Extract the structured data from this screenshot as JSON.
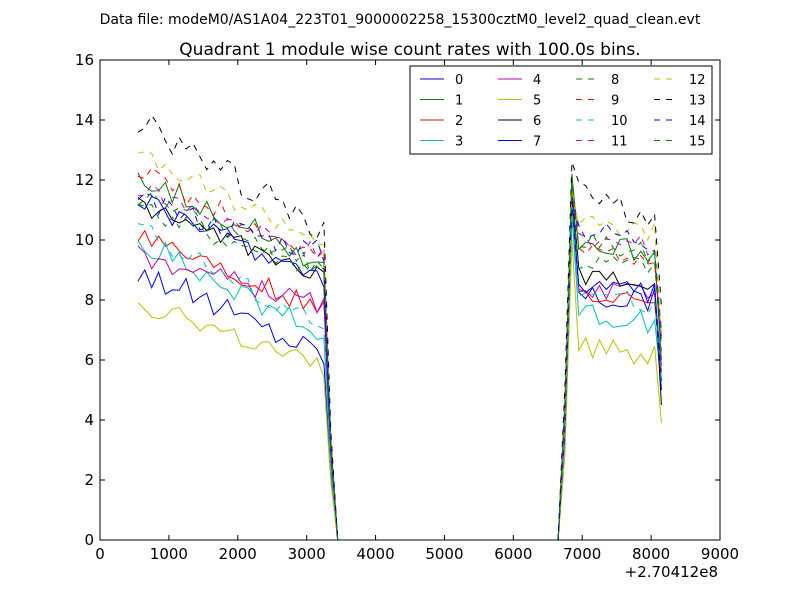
{
  "figure": {
    "suptitle": "Data file: modeM0/AS1A04_223T01_9000002258_15300cztM0_level2_quad_clean.evt",
    "title": "Quadrant 1 module wise count rates with 100.0s bins.",
    "x_offset_label": "+2.70412e8"
  },
  "chart_data": {
    "type": "line",
    "title": "Quadrant 1 module wise count rates with 100.0s bins.",
    "xlabel": "",
    "ylabel": "",
    "xlim": [
      0,
      9000
    ],
    "ylim": [
      0,
      16
    ],
    "x_ticks": [
      0,
      1000,
      2000,
      3000,
      4000,
      5000,
      6000,
      7000,
      8000,
      9000
    ],
    "y_ticks": [
      0,
      2,
      4,
      6,
      8,
      10,
      12,
      14,
      16
    ],
    "grid": false,
    "legend_position": "top-right",
    "x_gap": [
      3450,
      6650
    ],
    "series": [
      {
        "name": "0",
        "color": "#0000ff",
        "style": "solid",
        "base": 9.0,
        "amp": 0.45,
        "end": 6.2,
        "seg2": [
          11.0,
          8.2,
          8.0,
          5.0
        ]
      },
      {
        "name": "1",
        "color": "#008000",
        "style": "solid",
        "base": 12.2,
        "amp": 0.4,
        "end": 9.2,
        "seg2": [
          12.2,
          10.0,
          9.6,
          6.0
        ]
      },
      {
        "name": "2",
        "color": "#ff0000",
        "style": "solid",
        "base": 10.3,
        "amp": 0.35,
        "end": 7.6,
        "seg2": [
          11.0,
          8.2,
          8.2,
          5.6
        ]
      },
      {
        "name": "3",
        "color": "#00bfbf",
        "style": "solid",
        "base": 10.0,
        "amp": 0.4,
        "end": 6.8,
        "seg2": [
          10.8,
          7.7,
          7.2,
          5.2
        ]
      },
      {
        "name": "4",
        "color": "#bf00bf",
        "style": "solid",
        "base": 9.5,
        "amp": 0.35,
        "end": 7.8,
        "seg2": [
          11.3,
          8.0,
          8.4,
          5.8
        ]
      },
      {
        "name": "5",
        "color": "#bfbf00",
        "style": "solid",
        "base": 8.0,
        "amp": 0.4,
        "end": 5.6,
        "seg2": [
          10.0,
          6.4,
          6.2,
          3.9
        ]
      },
      {
        "name": "6",
        "color": "#000000",
        "style": "solid",
        "base": 11.2,
        "amp": 0.3,
        "end": 8.8,
        "seg2": [
          11.6,
          8.8,
          8.6,
          4.5
        ]
      },
      {
        "name": "7",
        "color": "#0000ff",
        "style": "solid",
        "base": 11.3,
        "amp": 0.35,
        "end": 8.7,
        "seg2": [
          11.3,
          8.5,
          8.2,
          5.3
        ]
      },
      {
        "name": "8",
        "color": "#008000",
        "style": "dashed",
        "base": 11.0,
        "amp": 0.35,
        "end": 9.0,
        "seg2": [
          11.5,
          9.3,
          9.2,
          6.3
        ]
      },
      {
        "name": "9",
        "color": "#ff0000",
        "style": "dashed",
        "base": 12.3,
        "amp": 0.35,
        "end": 9.3,
        "seg2": [
          11.6,
          9.6,
          9.5,
          6.8
        ]
      },
      {
        "name": "10",
        "color": "#00bfbf",
        "style": "dashed",
        "base": 10.4,
        "amp": 0.35,
        "end": 7.1,
        "seg2": [
          11.1,
          8.3,
          7.8,
          5.4
        ]
      },
      {
        "name": "11",
        "color": "#bf00bf",
        "style": "dashed",
        "base": 11.7,
        "amp": 0.35,
        "end": 9.5,
        "seg2": [
          11.8,
          10.0,
          9.8,
          7.0
        ]
      },
      {
        "name": "12",
        "color": "#bfbf00",
        "style": "dashed",
        "base": 12.8,
        "amp": 0.35,
        "end": 10.0,
        "seg2": [
          11.7,
          10.6,
          10.3,
          6.6
        ]
      },
      {
        "name": "13",
        "color": "#000000",
        "style": "dashed",
        "base": 14.0,
        "amp": 0.5,
        "end": 10.4,
        "seg2": [
          12.6,
          11.5,
          10.9,
          7.8
        ]
      },
      {
        "name": "14",
        "color": "#0000ff",
        "style": "dashed",
        "base": 11.3,
        "amp": 0.4,
        "end": 9.6,
        "seg2": [
          11.3,
          10.5,
          10.0,
          6.5
        ]
      },
      {
        "name": "15",
        "color": "#008000",
        "style": "dashed",
        "base": 11.5,
        "amp": 0.35,
        "end": 9.0,
        "seg2": [
          11.9,
          10.1,
          9.5,
          6.8
        ]
      }
    ]
  }
}
